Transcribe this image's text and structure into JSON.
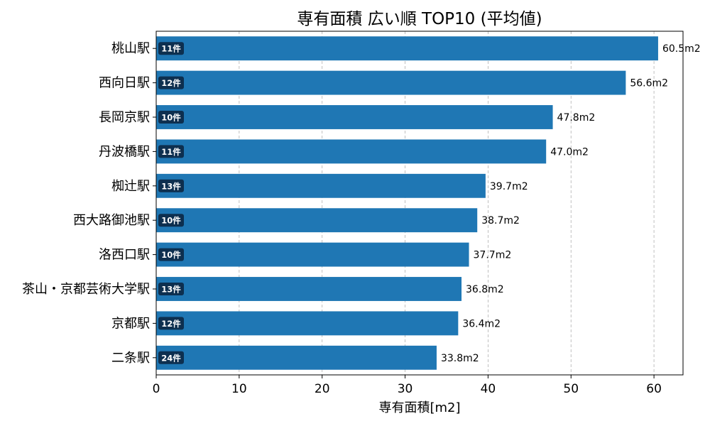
{
  "chart_data": {
    "type": "bar",
    "orientation": "horizontal",
    "title": "専有面積 広い順 TOP10 (平均値)",
    "xlabel": "専有面積[m2]",
    "ylabel": "",
    "xlim": [
      0,
      63.5
    ],
    "xticks": [
      0,
      10,
      20,
      30,
      40,
      50,
      60
    ],
    "grid": "x-dashed",
    "bar_color": "#1f77b4",
    "badge_color": "#0d2f4f",
    "categories": [
      "桃山駅",
      "西向日駅",
      "長岡京駅",
      "丹波橋駅",
      "椥辻駅",
      "西大路御池駅",
      "洛西口駅",
      "茶山・京都芸術大学駅",
      "京都駅",
      "二条駅"
    ],
    "values": [
      60.5,
      56.6,
      47.8,
      47.0,
      39.7,
      38.7,
      37.7,
      36.8,
      36.4,
      33.8
    ],
    "value_labels": [
      "60.5m2",
      "56.6m2",
      "47.8m2",
      "47.0m2",
      "39.7m2",
      "38.7m2",
      "37.7m2",
      "36.8m2",
      "36.4m2",
      "33.8m2"
    ],
    "counts": [
      "11件",
      "12件",
      "10件",
      "11件",
      "13件",
      "10件",
      "10件",
      "13件",
      "12件",
      "24件"
    ]
  }
}
